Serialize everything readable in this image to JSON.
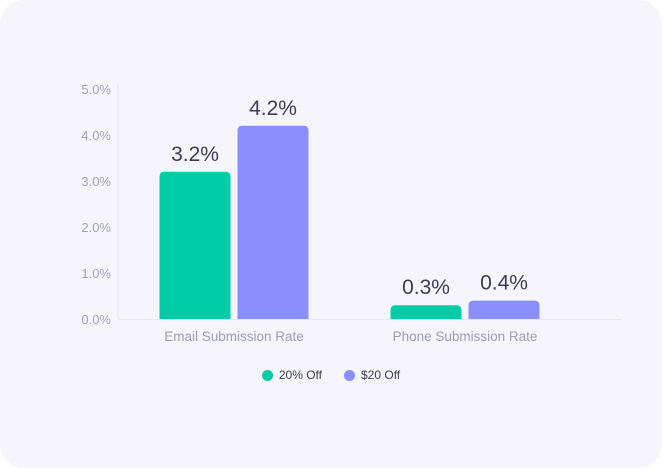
{
  "chart_data": {
    "type": "bar",
    "categories": [
      "Email Submission Rate",
      "Phone Submission Rate"
    ],
    "series": [
      {
        "name": "20% Off",
        "values": [
          3.2,
          0.3
        ],
        "labels": [
          "3.2%",
          "0.3%"
        ],
        "color": "#00cca7"
      },
      {
        "name": "$20 Off",
        "values": [
          4.2,
          0.4
        ],
        "labels": [
          "4.2%",
          "0.4%"
        ],
        "color": "#8a8ffd"
      }
    ],
    "yticks": [
      "0.0%",
      "1.0%",
      "2.0%",
      "3.0%",
      "4.0%",
      "5.0%"
    ],
    "ylim": [
      0,
      5
    ],
    "grid": false,
    "legend_position": "bottom"
  }
}
